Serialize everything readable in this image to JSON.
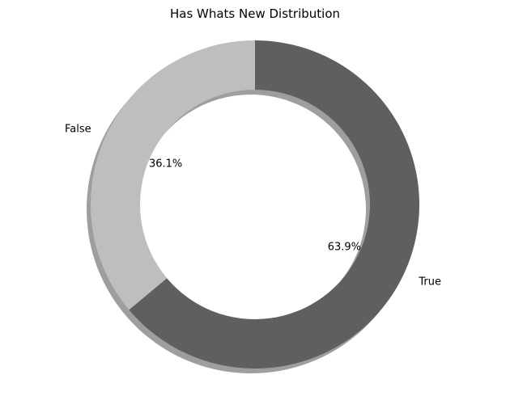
{
  "chart_data": {
    "type": "pie",
    "variant": "donut",
    "title": "Has Whats New Distribution",
    "start_angle_deg": 90,
    "direction": "clockwise",
    "shadow": true,
    "slices": [
      {
        "label": "True",
        "value": 63.9,
        "pct_label": "63.9%",
        "color": "#5f5f5f"
      },
      {
        "label": "False",
        "value": 36.1,
        "pct_label": "36.1%",
        "color": "#bebebe"
      }
    ]
  }
}
